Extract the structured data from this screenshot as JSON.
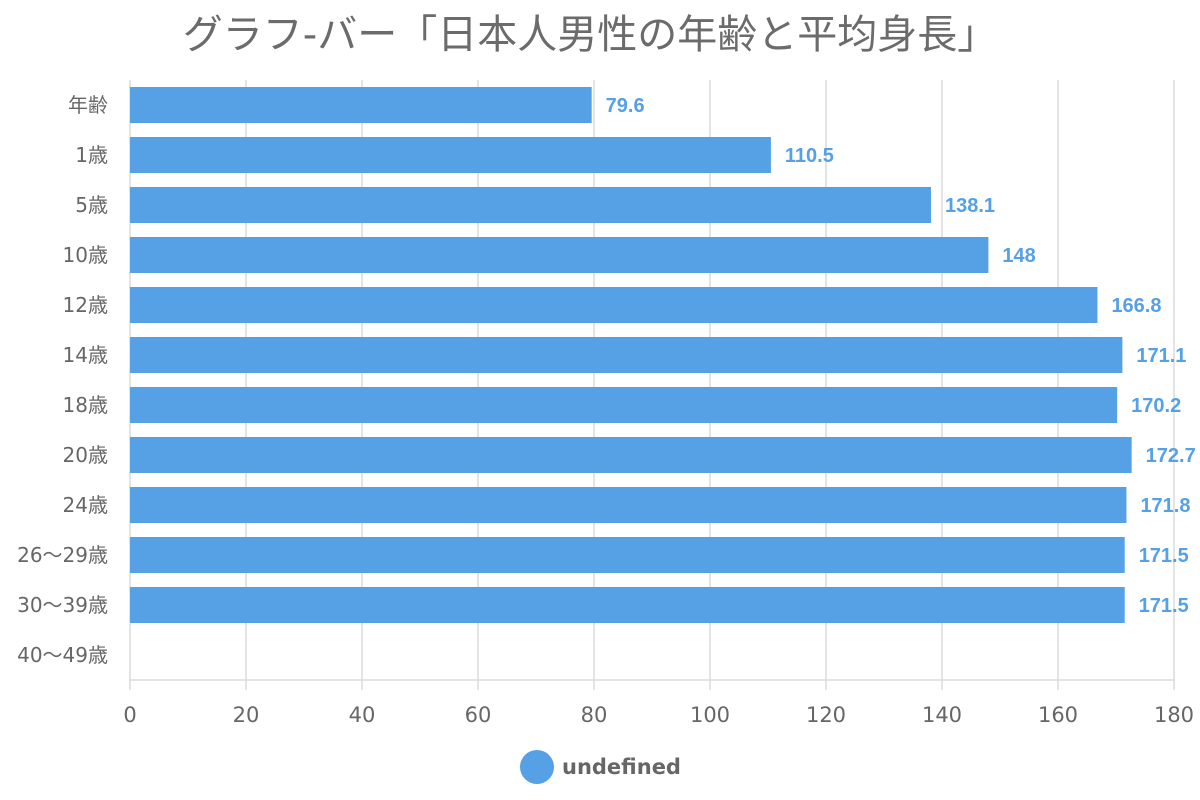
{
  "chart_data": {
    "type": "bar",
    "orientation": "horizontal",
    "title": "グラフ-バー「日本人男性の年齢と平均身長」",
    "categories": [
      "年齢",
      "1歳",
      "5歳",
      "10歳",
      "12歳",
      "14歳",
      "18歳",
      "20歳",
      "24歳",
      "26〜29歳",
      "30〜39歳",
      "40〜49歳"
    ],
    "series": [
      {
        "name": "undefined",
        "color": "#56a0e5",
        "values": [
          79.6,
          110.5,
          138.1,
          148,
          166.8,
          171.1,
          170.2,
          172.7,
          171.8,
          171.5,
          171.5,
          null
        ]
      }
    ],
    "data_labels": [
      "79.6",
      "110.5",
      "138.1",
      "148",
      "166.8",
      "171.1",
      "170.2",
      "172.7",
      "171.8",
      "171.5",
      "171.5",
      ""
    ],
    "xlim": [
      0,
      180
    ],
    "x_ticks": [
      0,
      20,
      40,
      60,
      80,
      100,
      120,
      140,
      160,
      180
    ],
    "grid": true,
    "legend_position": "bottom"
  }
}
